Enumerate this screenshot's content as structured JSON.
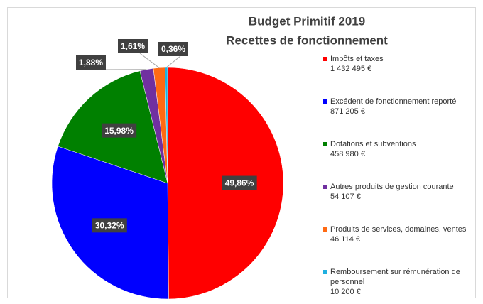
{
  "chart_data": {
    "type": "pie",
    "title": "Budget Primitif 2019",
    "subtitle": "Recettes de fonctionnement",
    "categories": [
      "Impôts et taxes",
      "Excédent de fonctionnement reporté",
      "Dotations et subventions",
      "Autres produits de gestion courante",
      "Produits de services, domaines, ventes",
      "Remboursement sur rémunération de personnel"
    ],
    "legend_amounts": [
      "1 432 495 €",
      "871 205 €",
      "458 980 €",
      "54 107 €",
      "46 114 €",
      "10 200 €"
    ],
    "values": [
      49.86,
      30.32,
      15.98,
      1.88,
      1.61,
      0.36
    ],
    "value_labels": [
      "49,86%",
      "30,32%",
      "15,98%",
      "1,88%",
      "1,61%",
      "0,36%"
    ],
    "colors": [
      "#ff0000",
      "#0000ff",
      "#008000",
      "#7030a0",
      "#ff6a13",
      "#1fb0e0"
    ],
    "legend_position": "right"
  }
}
